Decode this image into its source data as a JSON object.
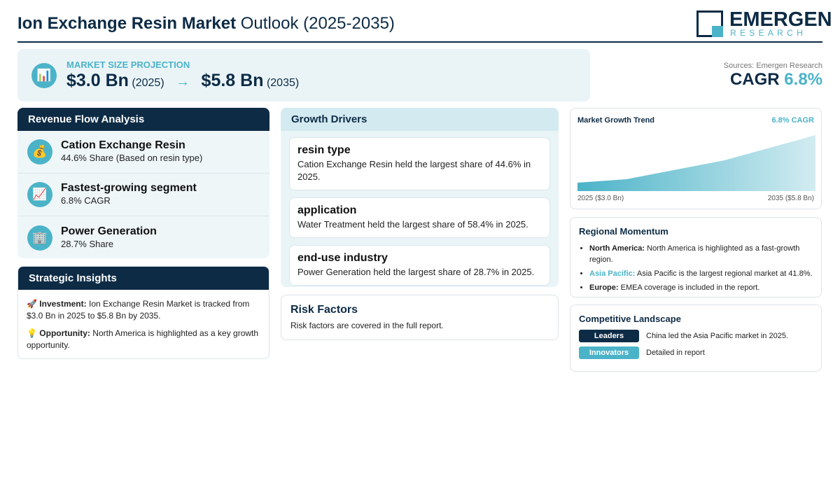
{
  "header": {
    "title_bold": "Ion Exchange Resin Market",
    "title_rest": "Outlook (2025-2035)",
    "logo_name": "EMERGEN",
    "logo_sub": "RESEARCH"
  },
  "projection": {
    "label": "MARKET SIZE PROJECTION",
    "start_value": "$3.0 Bn",
    "start_year": "(2025)",
    "end_value": "$5.8 Bn",
    "end_year": "(2035)"
  },
  "sources": "Sources: Emergen Research",
  "cagr": {
    "label": "CAGR",
    "value": "6.8%"
  },
  "revenue_flow": {
    "title": "Revenue Flow Analysis",
    "items": [
      {
        "name": "Cation Exchange Resin",
        "detail": "44.6% Share (Based on resin type)"
      },
      {
        "name": "Fastest-growing segment",
        "detail": "6.8% CAGR"
      },
      {
        "name": "Power Generation",
        "detail": "28.7% Share"
      }
    ]
  },
  "strategic_insights": {
    "title": "Strategic Insights",
    "items": [
      {
        "label": "Investment:",
        "text": "Ion Exchange Resin Market is tracked from $3.0 Bn in 2025 to $5.8 Bn by 2035."
      },
      {
        "label": "Opportunity:",
        "text": "North America is highlighted as a key growth opportunity."
      }
    ]
  },
  "growth_drivers": {
    "title": "Growth Drivers",
    "items": [
      {
        "name": "resin type",
        "text": "Cation Exchange Resin held the largest share of 44.6% in 2025."
      },
      {
        "name": "application",
        "text": "Water Treatment held the largest share of 58.4% in 2025."
      },
      {
        "name": "end-use industry",
        "text": "Power Generation held the largest share of 28.7% in 2025."
      }
    ]
  },
  "risk_factors": {
    "title": "Risk Factors",
    "text": "Risk factors are covered in the full report."
  },
  "trend": {
    "title": "Market Growth Trend",
    "badge": "6.8% CAGR",
    "start_label": "2025 ($3.0 Bn)",
    "end_label": "2035 ($5.8 Bn)"
  },
  "regional": {
    "title": "Regional Momentum",
    "items": [
      {
        "region": "North America:",
        "text": "North America is highlighted as a fast-growth region."
      },
      {
        "region": "Asia Pacific:",
        "text": "Asia Pacific is the largest regional market at 41.8%."
      },
      {
        "region": "Europe:",
        "text": "EMEA coverage is included in the report."
      }
    ]
  },
  "competitive": {
    "title": "Competitive Landscape",
    "items": [
      {
        "tag": "Leaders",
        "text": "China led the Asia Pacific market in 2025."
      },
      {
        "tag": "Innovators",
        "text": "Detailed in report"
      }
    ]
  }
}
